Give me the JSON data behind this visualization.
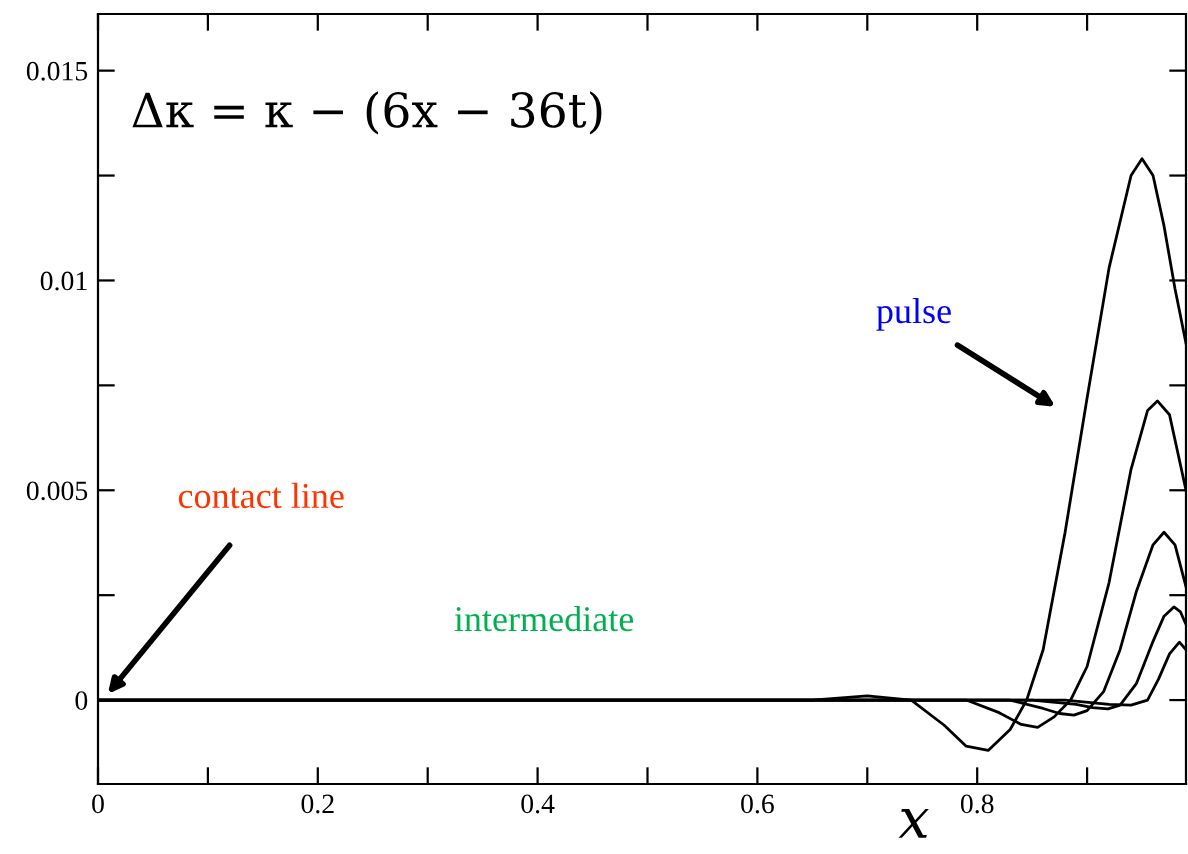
{
  "chart_data": {
    "type": "line",
    "xlabel": "x",
    "xlim": [
      0,
      0.99
    ],
    "ylim": [
      -0.002,
      0.01635
    ],
    "xticks": [
      0,
      {
        "value": 0.1,
        "label": null
      },
      0.2,
      {
        "value": 0.3,
        "label": null
      },
      0.4,
      {
        "value": 0.5,
        "label": null
      },
      0.6,
      {
        "value": 0.7,
        "label": null
      },
      0.8,
      {
        "value": 0.9,
        "label": null
      }
    ],
    "yticks": [
      0,
      {
        "value": 0.0025,
        "label": null
      },
      0.005,
      {
        "value": 0.0075,
        "label": null
      },
      0.01,
      {
        "value": 0.0125,
        "label": null
      },
      0.015
    ],
    "grid": false,
    "legend": false,
    "marker": "none",
    "line_style": "solid",
    "series": [
      {
        "color": "#000000",
        "x": [
          0,
          0.6,
          0.65,
          0.7,
          0.74,
          0.77,
          0.79,
          0.81,
          0.83,
          0.845,
          0.86,
          0.88,
          0.9,
          0.92,
          0.94,
          0.95,
          0.96,
          0.97,
          0.98,
          0.99
        ],
        "values": [
          0,
          0,
          0,
          0.0001,
          0,
          -0.0006,
          -0.0011,
          -0.0012,
          -0.0007,
          0,
          0.0012,
          0.004,
          0.0072,
          0.0103,
          0.0125,
          0.0129,
          0.0125,
          0.0113,
          0.0098,
          0.0085
        ]
      },
      {
        "color": "#000000",
        "x": [
          0,
          0.7,
          0.76,
          0.79,
          0.82,
          0.84,
          0.855,
          0.87,
          0.885,
          0.9,
          0.92,
          0.94,
          0.955,
          0.964,
          0.975,
          0.99
        ],
        "values": [
          0,
          0,
          0,
          0,
          -0.0003,
          -0.00058,
          -0.00065,
          -0.0004,
          0,
          0.0008,
          0.0028,
          0.0055,
          0.0069,
          0.00713,
          0.0068,
          0.005
        ]
      },
      {
        "color": "#000000",
        "x": [
          0,
          0.78,
          0.83,
          0.86,
          0.875,
          0.888,
          0.9,
          0.915,
          0.93,
          0.945,
          0.96,
          0.97,
          0.98,
          0.99
        ],
        "values": [
          0,
          0,
          0,
          -0.0002,
          -0.00032,
          -0.00036,
          -0.00025,
          0.0002,
          0.0012,
          0.0026,
          0.0037,
          0.004,
          0.0037,
          0.0027
        ]
      },
      {
        "color": "#000000",
        "x": [
          0,
          0.85,
          0.89,
          0.905,
          0.919,
          0.93,
          0.945,
          0.96,
          0.97,
          0.979,
          0.985,
          0.99
        ],
        "values": [
          0,
          0,
          -0.0001,
          -0.00018,
          -0.00021,
          -0.00012,
          0.0004,
          0.0014,
          0.002,
          0.00222,
          0.0021,
          0.0018
        ]
      },
      {
        "color": "#000000",
        "x": [
          0,
          0.88,
          0.92,
          0.94,
          0.955,
          0.965,
          0.975,
          0.984,
          0.99
        ],
        "values": [
          0,
          0,
          -0.0001,
          -0.00012,
          0,
          0.0005,
          0.0011,
          0.00138,
          0.0012
        ]
      }
    ],
    "annotations": [
      "Δκ = κ − (6x − 36t)",
      "pulse",
      "contact line",
      "intermediate"
    ]
  }
}
